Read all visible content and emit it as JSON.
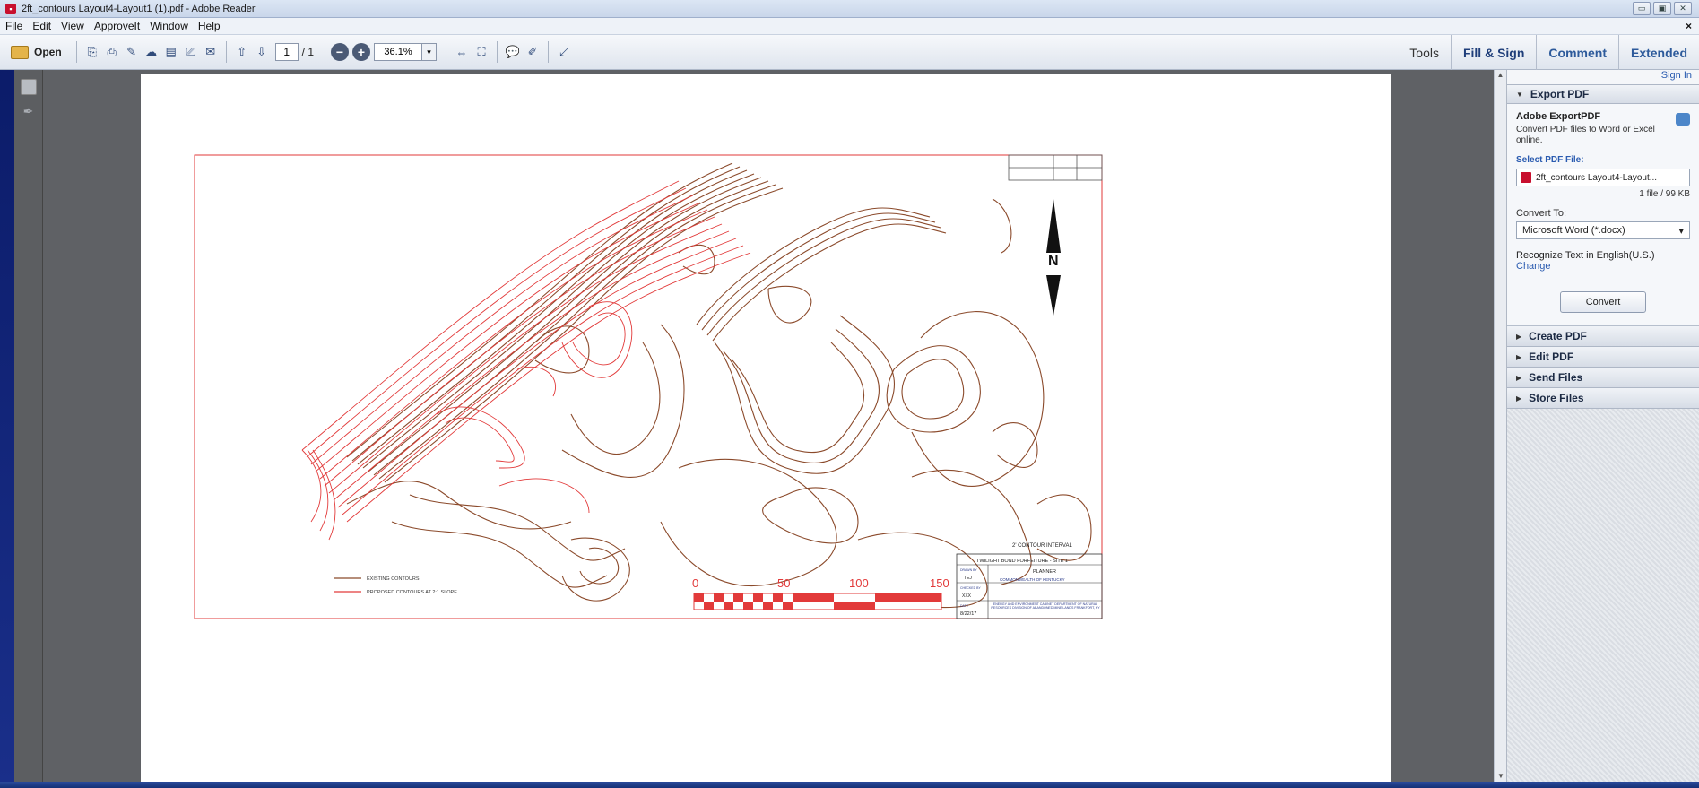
{
  "window": {
    "title": "2ft_contours Layout4-Layout1 (1).pdf - Adobe Reader",
    "controls": [
      "▭",
      "▣",
      "✕"
    ]
  },
  "menu": {
    "items": [
      "File",
      "Edit",
      "View",
      "ApproveIt",
      "Window",
      "Help"
    ],
    "close": "×"
  },
  "toolbar": {
    "open_label": "Open",
    "page_current": "1",
    "page_total": "/ 1",
    "zoom_value": "36.1%",
    "zoom_dropdown": "▾",
    "zoom_out": "−",
    "zoom_in": "+",
    "tabs": {
      "tools": "Tools",
      "fill_sign": "Fill & Sign",
      "comment": "Comment",
      "extended": "Extended"
    }
  },
  "right_pane": {
    "sign_in": "Sign In",
    "export_pdf": {
      "header": "Export PDF",
      "title": "Adobe ExportPDF",
      "description": "Convert PDF files to Word or Excel online.",
      "select_label": "Select PDF File:",
      "file_name": "2ft_contours Layout4-Layout...",
      "file_size": "1 file / 99 KB",
      "convert_to_label": "Convert To:",
      "convert_to_value": "Microsoft Word (*.docx)",
      "recognize_text": "Recognize Text in English(U.S.)",
      "change": "Change",
      "convert_button": "Convert"
    },
    "sections": [
      "Create PDF",
      "Edit PDF",
      "Send Files",
      "Store Files"
    ]
  },
  "drawing": {
    "contour_interval": "2' CONTOUR INTERVAL",
    "legend_existing": "EXISTING CONTOURS",
    "legend_proposed": "PROPOSED CONTOURS AT 2:1 SLOPE",
    "scale_labels": [
      "0",
      "50",
      "100",
      "150"
    ],
    "north_label": "N",
    "title_block": {
      "project": "TWILIGHT BOND FORFEITURE - SITE 1",
      "drawn_by_label": "DRAWN BY",
      "drawn_by": "TEJ",
      "checked_by_label": "CHECKED BY",
      "checked_by": "XXX",
      "date_label": "DATE",
      "date": "8/22/17",
      "planner": "PLANNER",
      "agency": "COMMONWEALTH OF KENTUCKY",
      "department": "ENERGY AND ENVIRONMENT CABINET DEPARTMENT OF NATURAL RESOURCES DIVISION OF ABANDONED MINE LANDS FRANKFORT, KY"
    },
    "colors": {
      "existing": "#8b4a2b",
      "proposed": "#e23a3a",
      "border": "#e23a3a"
    }
  }
}
